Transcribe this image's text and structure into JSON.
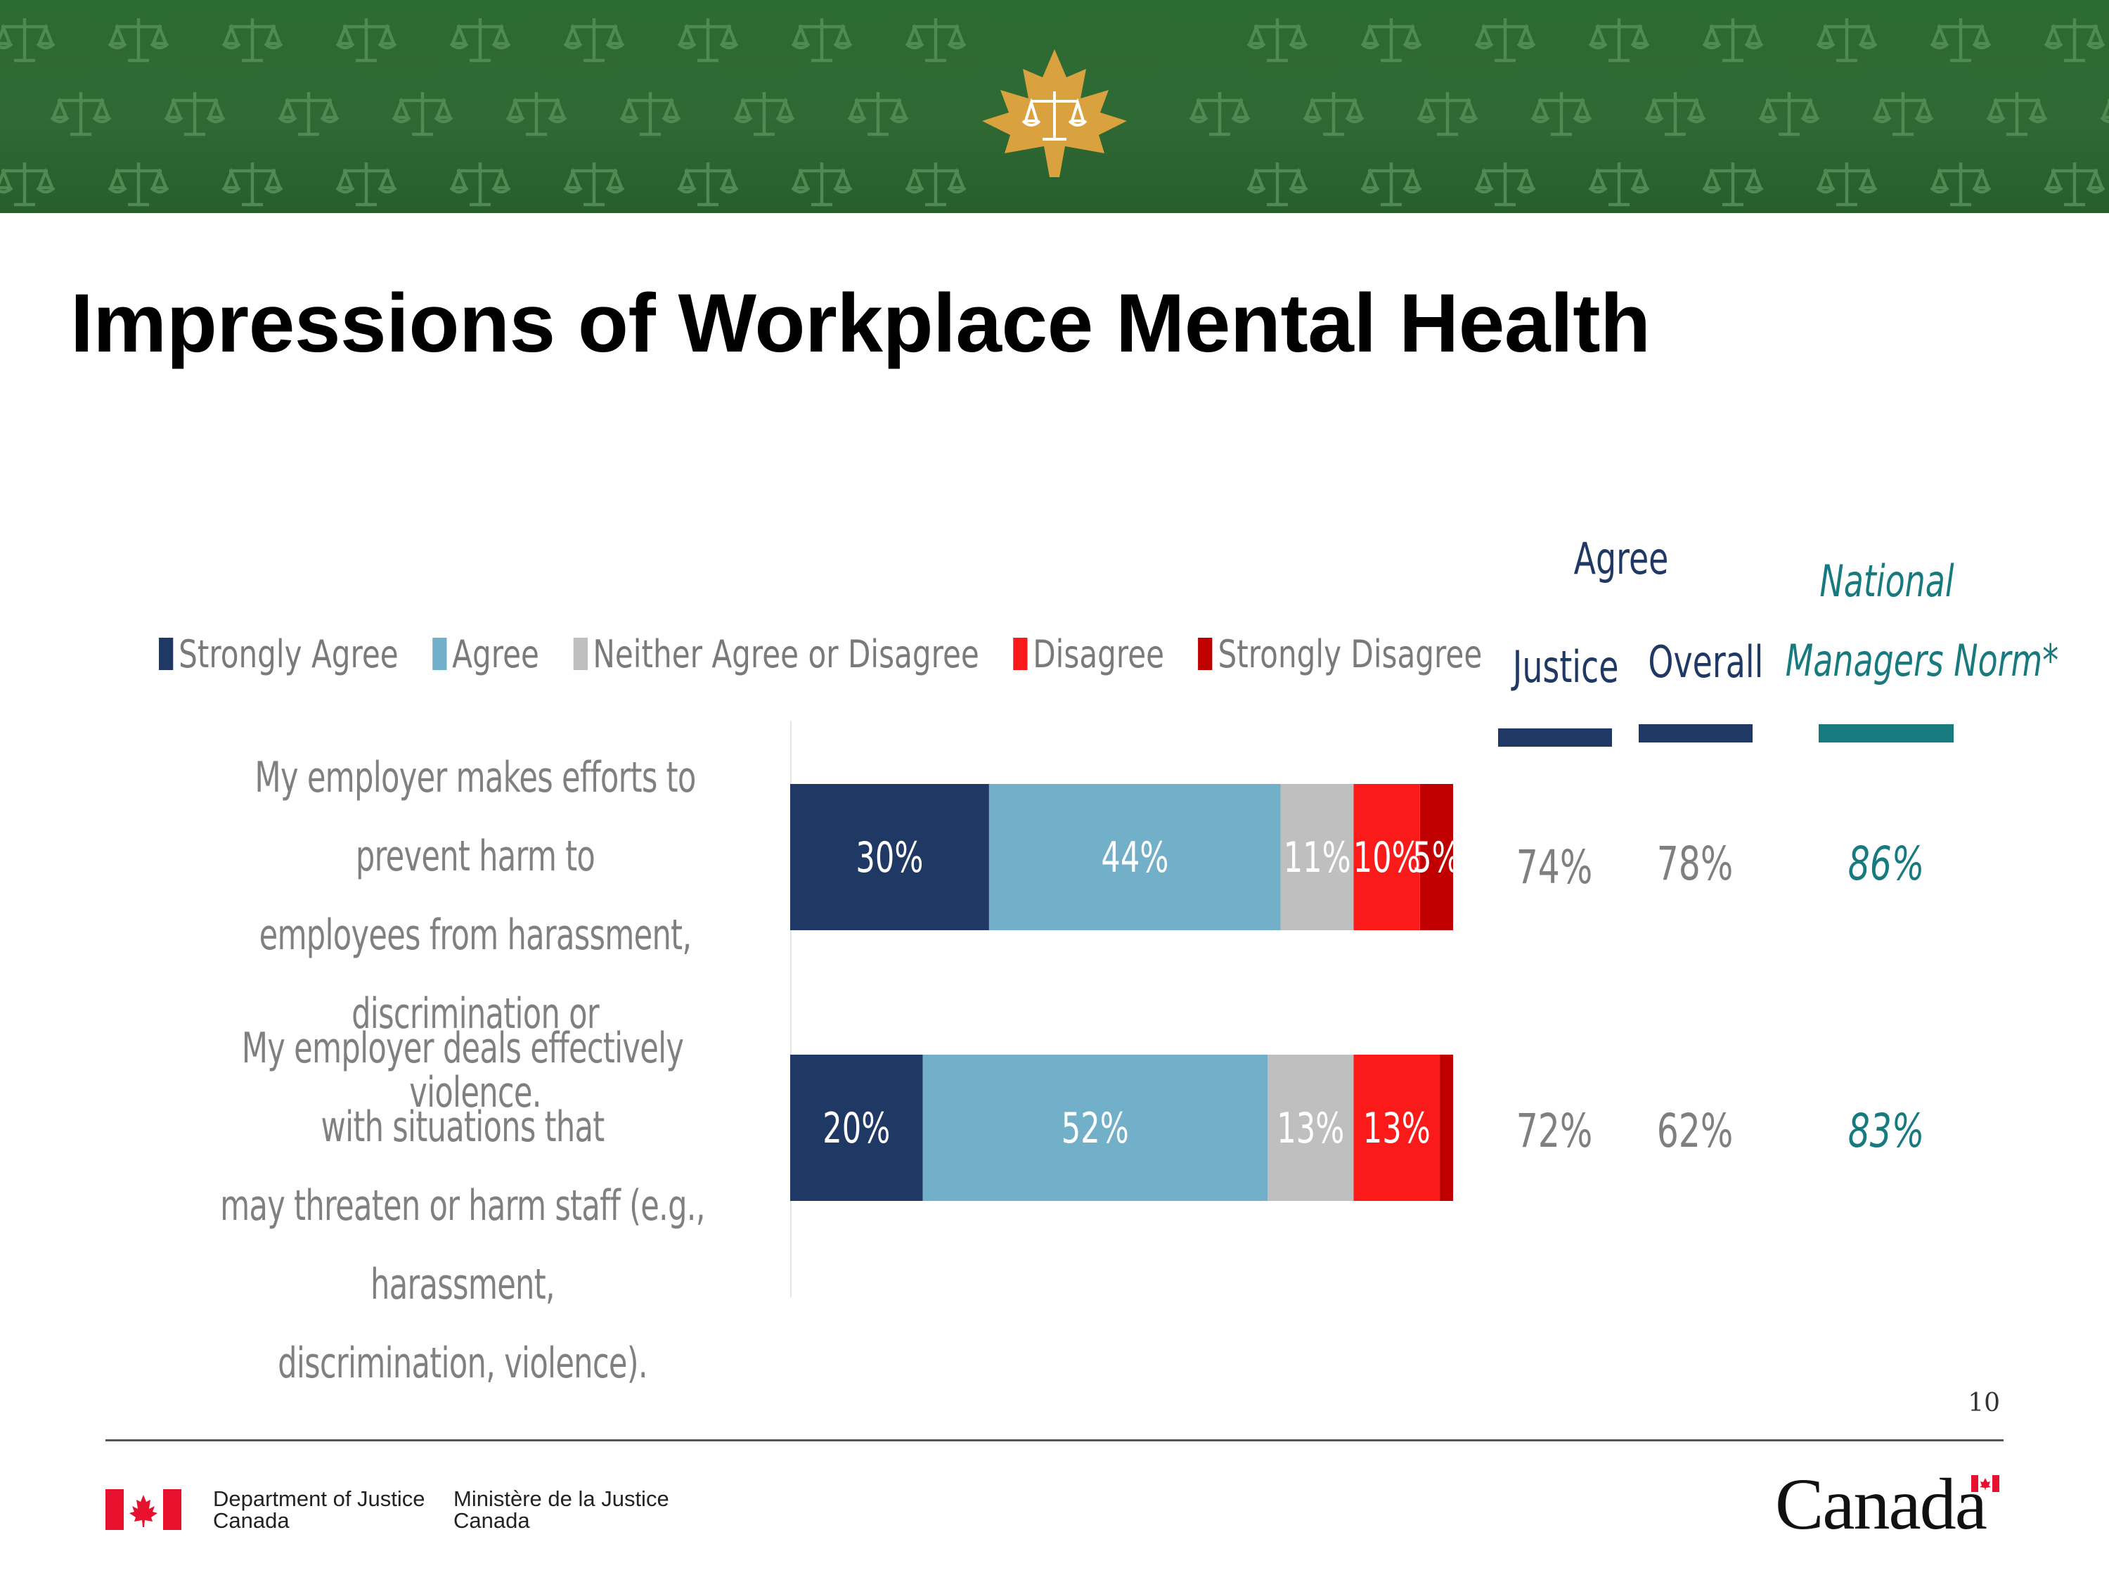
{
  "page": {
    "title": "Impressions of Workplace Mental Health",
    "page_number": "10"
  },
  "header": {
    "emblem_icon": "maple-leaf-scales-icon",
    "pattern_icon": "scales-of-justice-icon"
  },
  "chart_data": {
    "type": "bar",
    "orientation": "horizontal",
    "stacked": true,
    "title": "",
    "xlabel": "",
    "ylabel": "",
    "xlim": [
      0,
      100
    ],
    "legend_position": "top",
    "grid": false,
    "categories": [
      "My employer makes efforts to prevent harm to employees from harassment, discrimination or violence.",
      "My employer deals effectively with situations that may threaten or harm staff (e.g., harassment, discrimination, violence)."
    ],
    "category_lines": [
      [
        "My employer makes efforts to prevent harm to",
        "employees from harassment, discrimination or",
        "violence."
      ],
      [
        "My employer deals effectively with situations that",
        "may threaten or harm staff (e.g., harassment,",
        "discrimination, violence)."
      ]
    ],
    "series": [
      {
        "name": "Strongly Agree",
        "color": "#1f3864",
        "text_color": "#ffffff",
        "values": [
          30,
          20
        ],
        "labels": [
          "30%",
          "20%"
        ]
      },
      {
        "name": "Agree",
        "color": "#72b0ca",
        "text_color": "#ffffff",
        "values": [
          44,
          52
        ],
        "labels": [
          "44%",
          "52%"
        ]
      },
      {
        "name": "Neither Agree or Disagree",
        "color": "#bfbfbf",
        "text_color": "#ffffff",
        "values": [
          11,
          13
        ],
        "labels": [
          "11%",
          "13%"
        ]
      },
      {
        "name": "Disagree",
        "color": "#fb1a1a",
        "text_color": "#ffffff",
        "values": [
          10,
          13
        ],
        "labels": [
          "10%",
          "13%"
        ]
      },
      {
        "name": "Strongly Disagree",
        "color": "#c00000",
        "text_color": "#ffffff",
        "values": [
          5,
          2
        ],
        "labels": [
          "5%",
          ""
        ]
      }
    ],
    "agree_table": {
      "group_heading": "Agree",
      "columns": [
        {
          "heading": "Justice",
          "bar_color": "#1f3864",
          "values": [
            "74%",
            "72%"
          ]
        },
        {
          "heading": "Overall",
          "bar_color": "#1f3864",
          "values": [
            "78%",
            "62%"
          ]
        },
        {
          "heading_line1": "National",
          "heading_line2": "Managers Norm*",
          "bar_color": "#177a7f",
          "values": [
            "86%",
            "83%"
          ]
        }
      ]
    }
  },
  "footer": {
    "dept_en_line1": "Department of Justice",
    "dept_en_line2": "Canada",
    "dept_fr_line1": "Ministère de la Justice",
    "dept_fr_line2": "Canada",
    "wordmark": "Canada",
    "flag_icon": "canada-flag-icon"
  }
}
